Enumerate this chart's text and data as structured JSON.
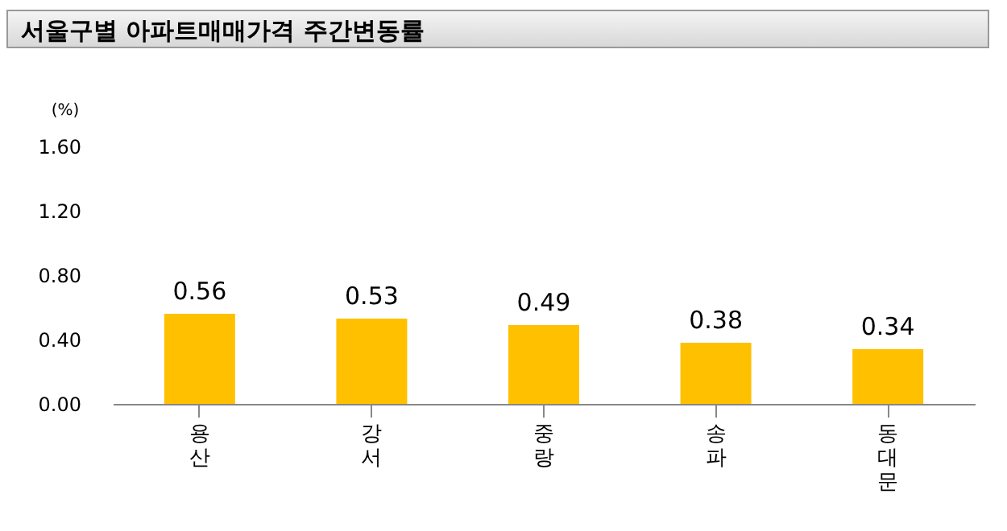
{
  "chart_data": {
    "type": "bar",
    "title": "서울구별 아파트매매가격 주간변동률",
    "ylabel": "(%)",
    "categories": [
      "용산",
      "강서",
      "중랑",
      "송파",
      "동대문"
    ],
    "values": [
      0.56,
      0.53,
      0.49,
      0.38,
      0.34
    ],
    "color": "#ffc000",
    "ylim": [
      0,
      1.6
    ],
    "yticks": [
      {
        "value": 0,
        "label": "0.00"
      },
      {
        "value": 0.4,
        "label": "0.40"
      },
      {
        "value": 0.8,
        "label": "0.80"
      },
      {
        "value": 1.2,
        "label": "1.20"
      },
      {
        "value": 1.6,
        "label": "1.60"
      }
    ],
    "data_labels": true,
    "grid": false
  }
}
